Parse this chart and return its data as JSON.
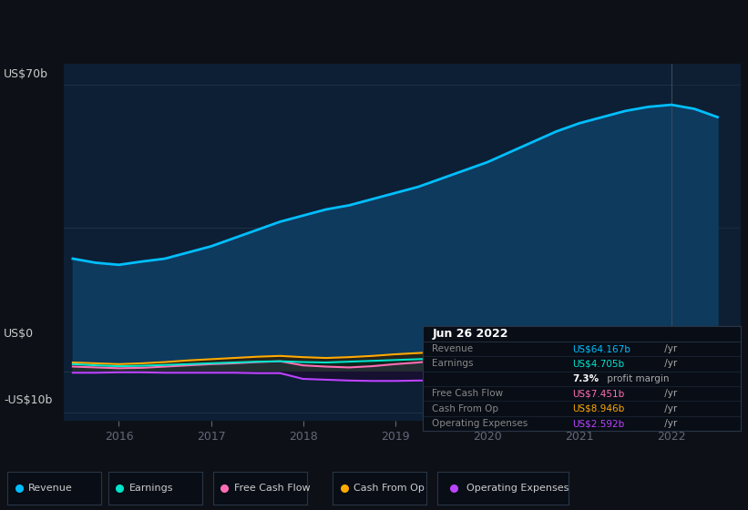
{
  "bg_color": "#0d1117",
  "chart_bg": "#0d1f35",
  "title": "Jun 26 2022",
  "ylabel_70": "US$70b",
  "ylabel_0": "US$0",
  "ylabel_neg10": "-US$10b",
  "x_years": [
    2015.5,
    2015.75,
    2016.0,
    2016.25,
    2016.5,
    2016.75,
    2017.0,
    2017.25,
    2017.5,
    2017.75,
    2018.0,
    2018.25,
    2018.5,
    2018.75,
    2019.0,
    2019.25,
    2019.5,
    2019.75,
    2020.0,
    2020.25,
    2020.5,
    2020.75,
    2021.0,
    2021.25,
    2021.5,
    2021.75,
    2022.0,
    2022.25,
    2022.5
  ],
  "revenue": [
    27.5,
    26.5,
    26.0,
    26.8,
    27.5,
    29.0,
    30.5,
    32.5,
    34.5,
    36.5,
    38.0,
    39.5,
    40.5,
    42.0,
    43.5,
    45.0,
    47.0,
    49.0,
    51.0,
    53.5,
    56.0,
    58.5,
    60.5,
    62.0,
    63.5,
    64.5,
    65.0,
    64.0,
    62.0
  ],
  "earnings": [
    1.8,
    1.5,
    1.3,
    1.4,
    1.6,
    1.8,
    2.0,
    2.2,
    2.4,
    2.5,
    2.3,
    2.2,
    2.4,
    2.6,
    2.8,
    3.0,
    3.2,
    3.5,
    3.8,
    4.2,
    4.5,
    4.7,
    5.0,
    5.2,
    5.4,
    5.6,
    5.8,
    5.2,
    4.7
  ],
  "free_cash_flow": [
    1.2,
    1.0,
    0.8,
    0.9,
    1.2,
    1.5,
    1.8,
    2.0,
    2.3,
    2.5,
    1.5,
    1.2,
    1.0,
    1.3,
    1.8,
    2.2,
    2.8,
    3.2,
    3.8,
    4.5,
    5.2,
    5.8,
    6.2,
    6.5,
    6.8,
    7.2,
    7.8,
    7.6,
    7.5
  ],
  "cash_from_op": [
    2.2,
    2.0,
    1.8,
    2.0,
    2.3,
    2.7,
    3.0,
    3.3,
    3.6,
    3.8,
    3.5,
    3.3,
    3.5,
    3.8,
    4.2,
    4.5,
    4.8,
    5.2,
    5.6,
    6.0,
    6.5,
    7.0,
    7.5,
    7.8,
    8.0,
    8.5,
    8.9,
    9.0,
    8.9
  ],
  "op_expenses": [
    -0.3,
    -0.3,
    -0.2,
    -0.2,
    -0.3,
    -0.3,
    -0.3,
    -0.3,
    -0.4,
    -0.4,
    -1.8,
    -2.0,
    -2.2,
    -2.3,
    -2.3,
    -2.2,
    -2.2,
    -2.2,
    -2.1,
    -2.0,
    -1.9,
    -1.8,
    -1.6,
    -1.5,
    -1.3,
    -1.4,
    -1.8,
    -2.2,
    -2.6
  ],
  "revenue_color": "#00bfff",
  "earnings_color": "#00e5cc",
  "fcf_color": "#ff6eb4",
  "cfop_color": "#ffaa00",
  "opex_color": "#bb44ff",
  "ylim_min": -12,
  "ylim_max": 75,
  "xlim_min": 2015.4,
  "xlim_max": 2022.75,
  "xticks": [
    2016,
    2017,
    2018,
    2019,
    2020,
    2021,
    2022
  ],
  "legend_items": [
    "Revenue",
    "Earnings",
    "Free Cash Flow",
    "Cash From Op",
    "Operating Expenses"
  ],
  "legend_colors": [
    "#00bfff",
    "#00e5cc",
    "#ff6eb4",
    "#ffaa00",
    "#bb44ff"
  ]
}
